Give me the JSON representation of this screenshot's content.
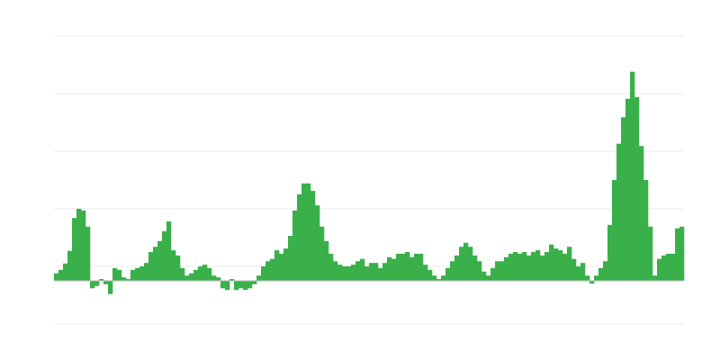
{
  "chart_data": {
    "type": "bar",
    "title": "",
    "xlabel": "",
    "ylabel": "",
    "ylim": [
      -0.75,
      4.25
    ],
    "gridlines": [
      -0.75,
      0.25,
      1.25,
      2.25,
      3.25,
      4.25
    ],
    "grid": true,
    "legend": "none",
    "bar_color": "#39b04a",
    "grid_color": "#ebebeb",
    "values": [
      0.13,
      0.19,
      0.3,
      0.52,
      1.09,
      1.25,
      1.22,
      0.94,
      -0.13,
      -0.09,
      0.03,
      -0.06,
      -0.23,
      0.22,
      0.19,
      0.06,
      0.03,
      0.19,
      0.22,
      0.25,
      0.31,
      0.5,
      0.59,
      0.69,
      0.86,
      1.03,
      0.53,
      0.44,
      0.22,
      0.09,
      0.13,
      0.19,
      0.25,
      0.28,
      0.22,
      0.09,
      0.06,
      -0.13,
      -0.16,
      0.03,
      -0.16,
      -0.13,
      -0.16,
      -0.13,
      -0.06,
      0.09,
      0.25,
      0.34,
      0.38,
      0.53,
      0.47,
      0.56,
      0.78,
      1.22,
      1.5,
      1.69,
      1.69,
      1.56,
      1.31,
      0.94,
      0.69,
      0.47,
      0.34,
      0.28,
      0.25,
      0.25,
      0.28,
      0.34,
      0.38,
      0.25,
      0.31,
      0.31,
      0.22,
      0.31,
      0.41,
      0.38,
      0.47,
      0.47,
      0.5,
      0.41,
      0.47,
      0.47,
      0.28,
      0.19,
      0.09,
      0.03,
      0.09,
      0.22,
      0.34,
      0.44,
      0.59,
      0.66,
      0.59,
      0.44,
      0.34,
      0.16,
      0.09,
      0.22,
      0.34,
      0.34,
      0.41,
      0.47,
      0.5,
      0.47,
      0.5,
      0.44,
      0.5,
      0.53,
      0.44,
      0.5,
      0.63,
      0.56,
      0.53,
      0.47,
      0.59,
      0.38,
      0.25,
      0.31,
      0.09,
      -0.05,
      0.09,
      0.22,
      0.34,
      0.97,
      1.75,
      2.38,
      2.84,
      3.16,
      3.63,
      3.19,
      2.34,
      1.75,
      0.94,
      0.09,
      0.38,
      0.44,
      0.47,
      0.47,
      0.91,
      0.94
    ]
  }
}
